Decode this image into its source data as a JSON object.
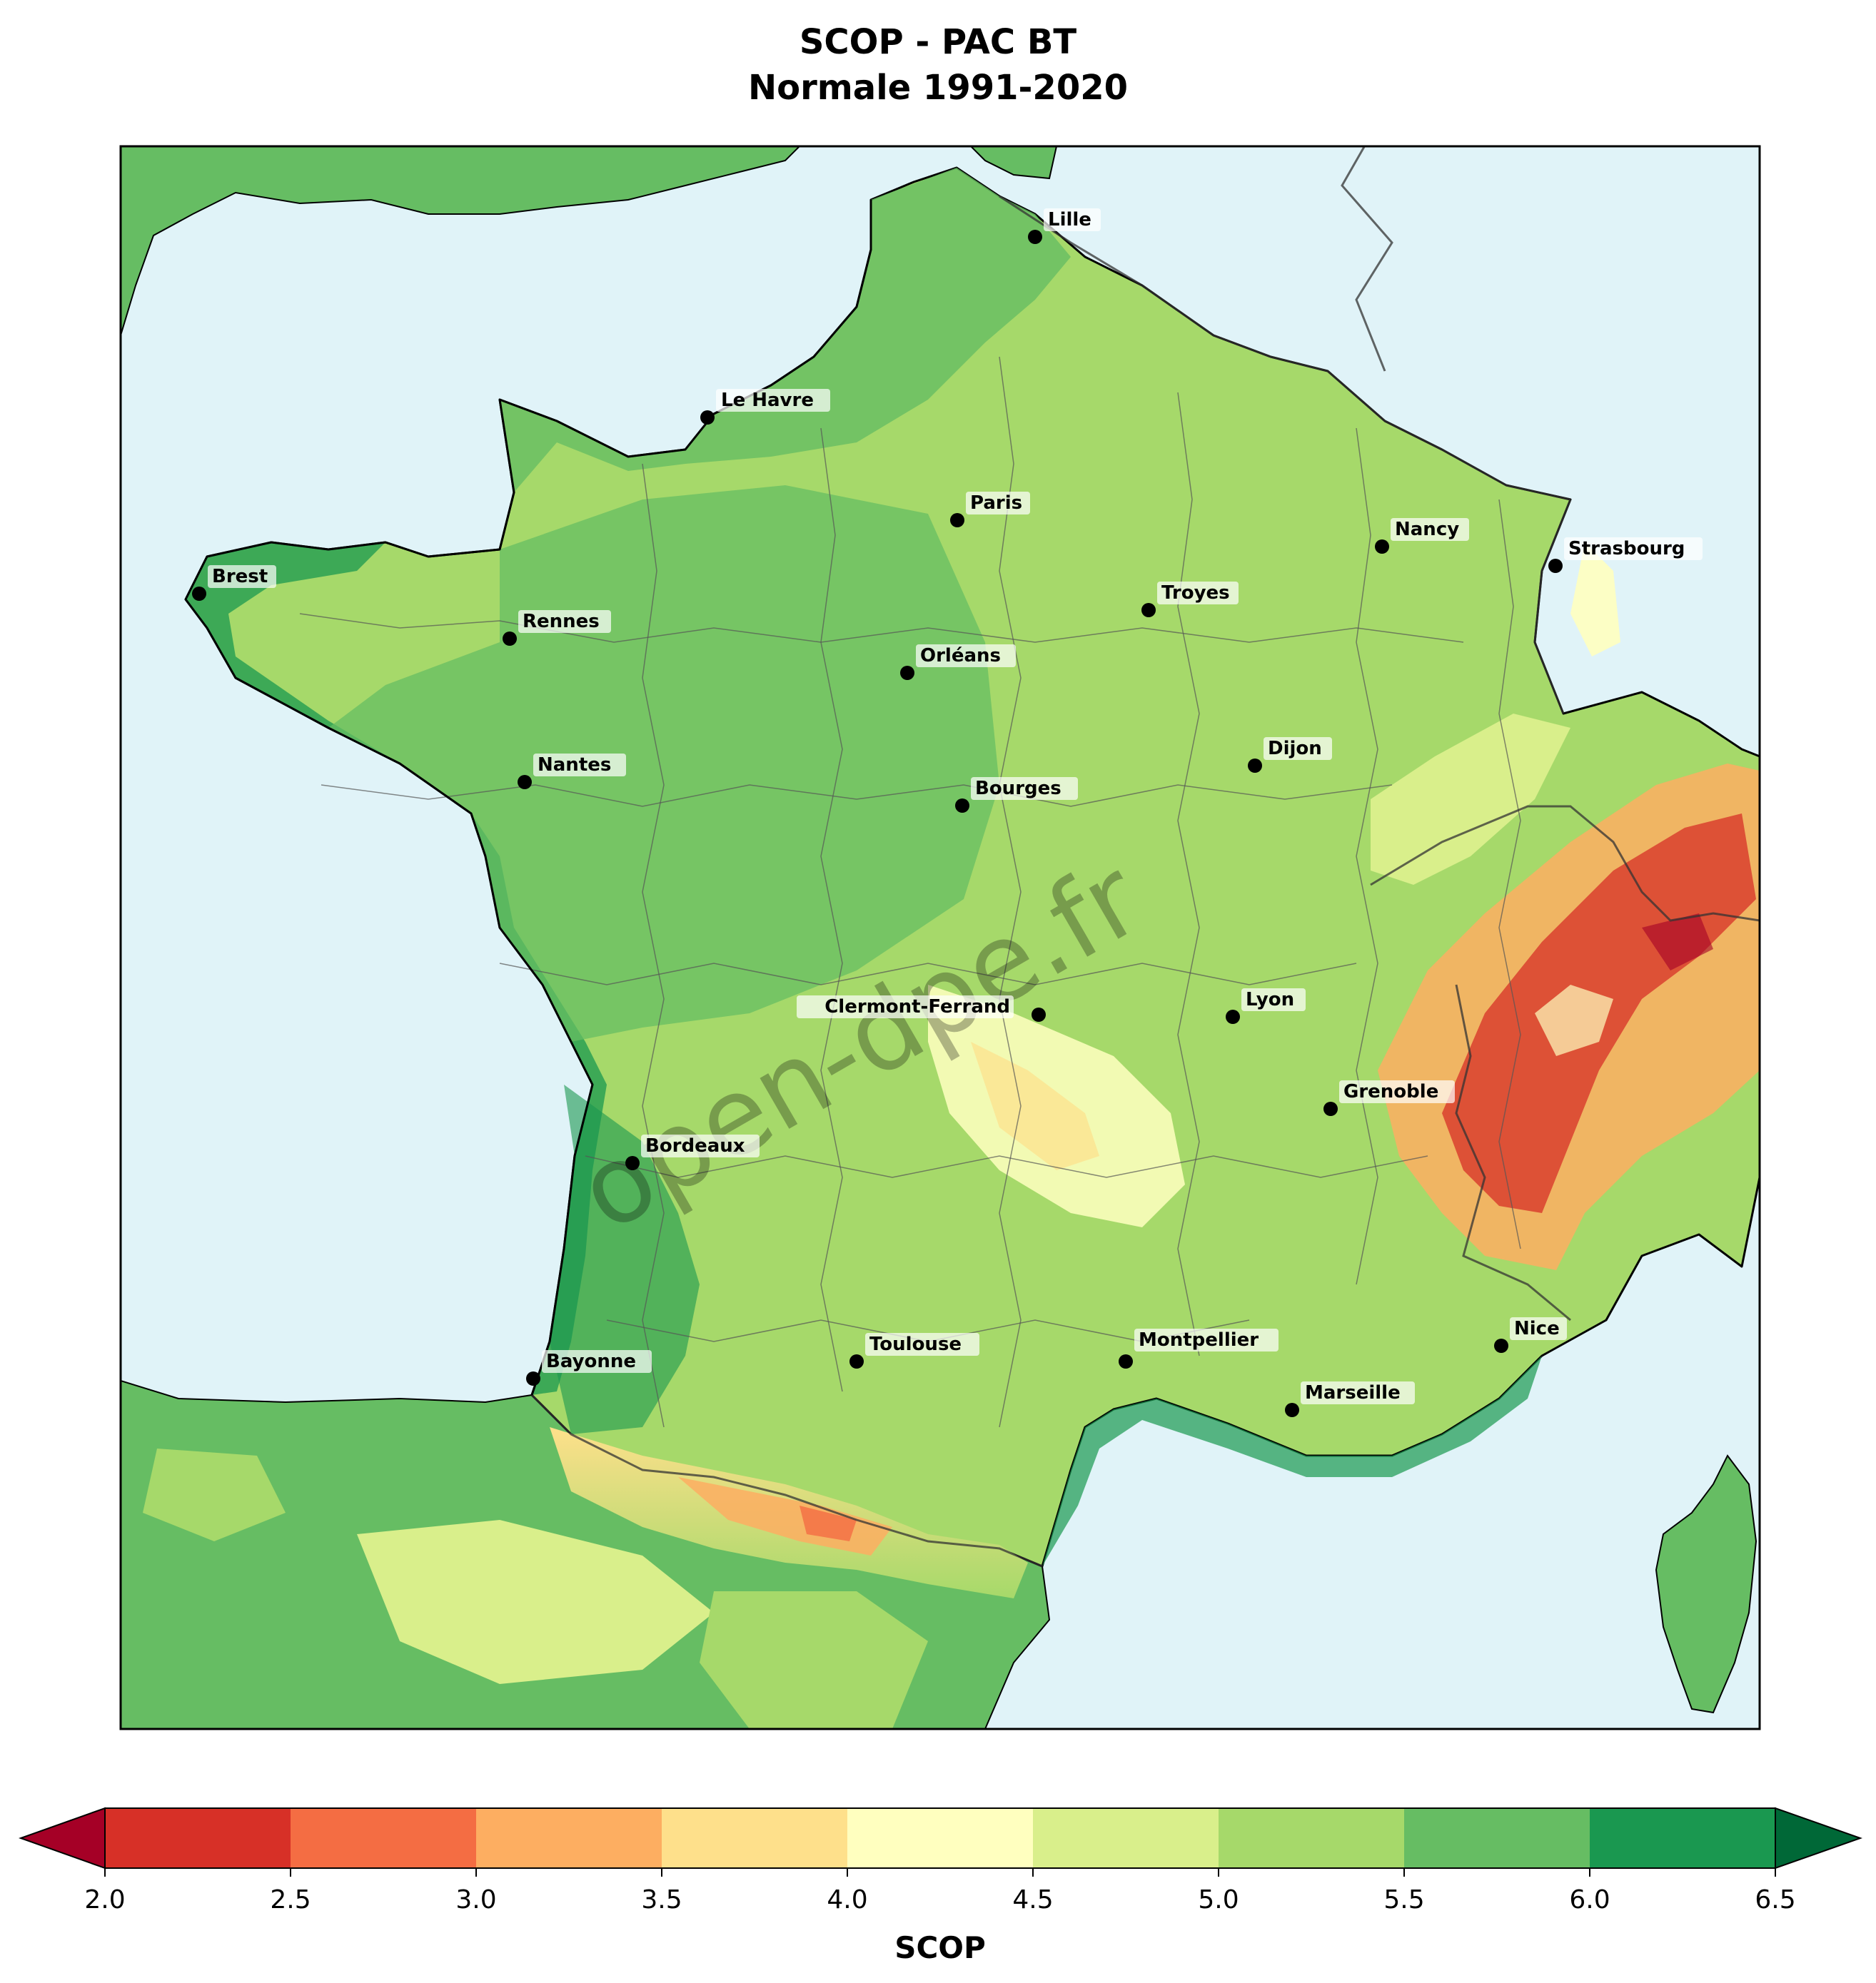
{
  "title_line1": "SCOP - PAC BT",
  "title_line2": "Normale 1991-2020",
  "watermark": "open-dpe.fr",
  "colorbar": {
    "label": "SCOP",
    "ticks": [
      "2.0",
      "2.5",
      "3.0",
      "3.5",
      "4.0",
      "4.5",
      "5.0",
      "5.5",
      "6.0",
      "6.5"
    ],
    "bin_colors": [
      "#d73027",
      "#f46d43",
      "#fdae61",
      "#fee08b",
      "#ffffbf",
      "#d9ef8b",
      "#a6d96a",
      "#66bd63",
      "#1a9850"
    ],
    "under_color": "#a50026",
    "over_color": "#006837"
  },
  "map_colors": {
    "sea": "#e0f3f8",
    "coast": "#000000",
    "borders": "#555555"
  },
  "cities": [
    {
      "name": "Lille"
    },
    {
      "name": "Le Havre"
    },
    {
      "name": "Paris"
    },
    {
      "name": "Nancy"
    },
    {
      "name": "Strasbourg"
    },
    {
      "name": "Brest"
    },
    {
      "name": "Troyes"
    },
    {
      "name": "Rennes"
    },
    {
      "name": "Orléans"
    },
    {
      "name": "Dijon"
    },
    {
      "name": "Nantes"
    },
    {
      "name": "Bourges"
    },
    {
      "name": "Lyon"
    },
    {
      "name": "Clermont-Ferrand"
    },
    {
      "name": "Grenoble"
    },
    {
      "name": "Bordeaux"
    },
    {
      "name": "Nice"
    },
    {
      "name": "Toulouse"
    },
    {
      "name": "Montpellier"
    },
    {
      "name": "Bayonne"
    },
    {
      "name": "Marseille"
    }
  ]
}
